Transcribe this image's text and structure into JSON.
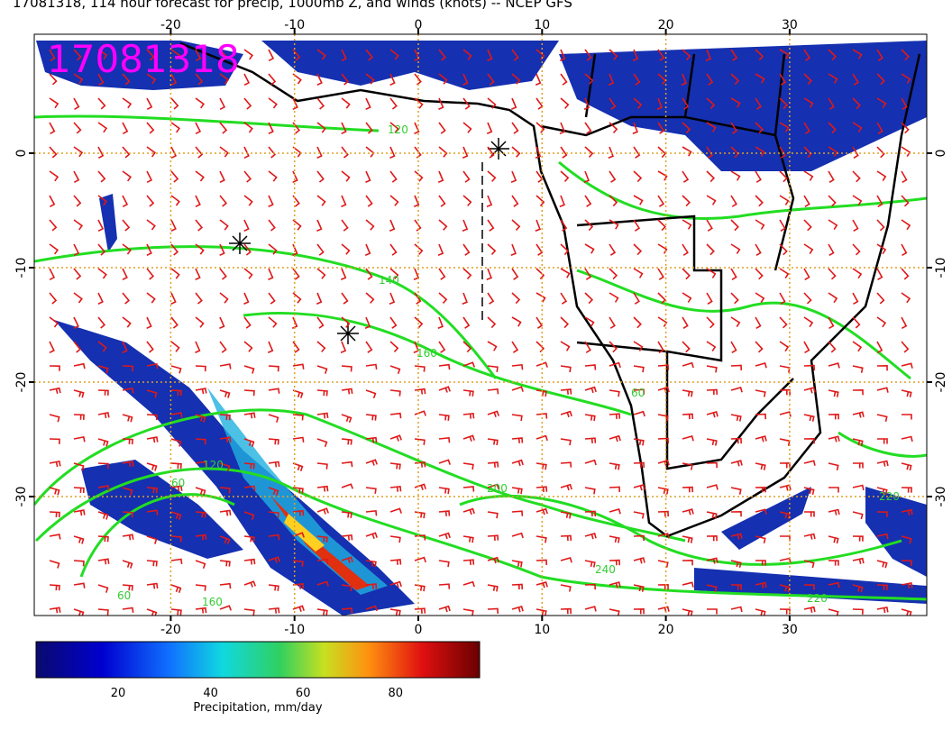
{
  "header": {
    "title": "17081318, 114 hour forecast for precip, 1000mb Z, and winds (knots) -- NCEP GFS",
    "stamp": "17081318"
  },
  "map": {
    "lon_ticks": [
      -20,
      -10,
      0,
      10,
      20,
      30
    ],
    "lat_ticks": [
      0,
      -10,
      -20,
      -30
    ],
    "contour_labels": [
      120,
      140,
      160,
      200,
      220,
      220,
      240,
      60,
      60,
      160,
      60,
      120
    ]
  },
  "colorbar": {
    "ticks": [
      20,
      40,
      60,
      80
    ],
    "label": "Precipitation, mm/day"
  }
}
